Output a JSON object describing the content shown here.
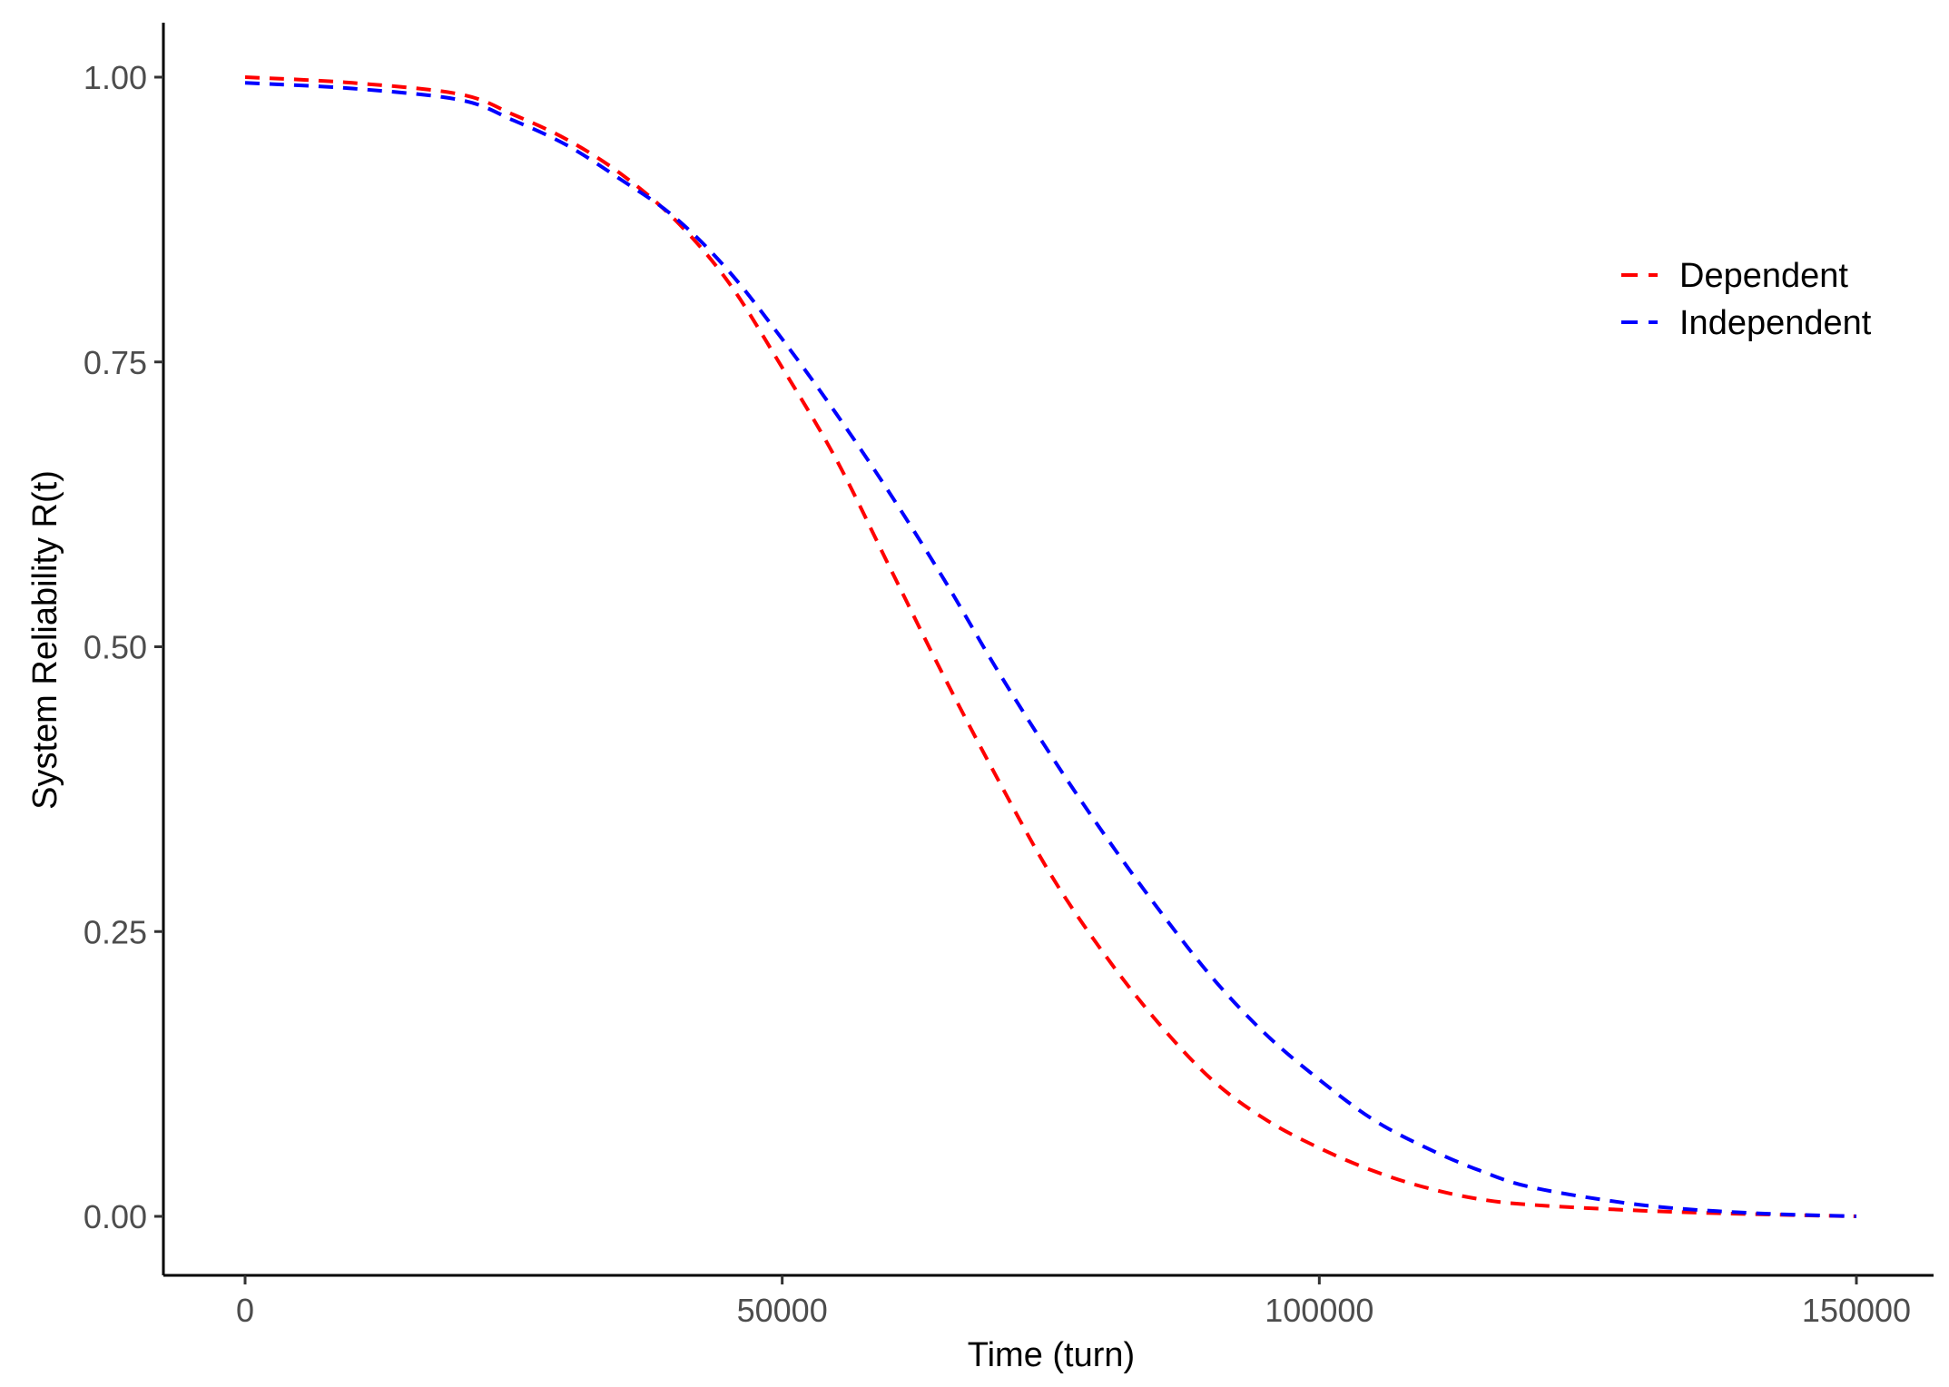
{
  "chart_data": {
    "type": "line",
    "title": "",
    "xlabel": "Time (turn)",
    "ylabel": "System Reliability R(t)",
    "xlim": [
      -7500,
      157500
    ],
    "ylim": [
      -0.05,
      1.05
    ],
    "x_ticks": [
      0,
      50000,
      100000,
      150000
    ],
    "x_tick_labels": [
      "0",
      "50000",
      "100000",
      "150000"
    ],
    "y_ticks": [
      0,
      0.25,
      0.5,
      0.75,
      1.0
    ],
    "y_tick_labels": [
      "0.00",
      "0.25",
      "0.50",
      "0.75",
      "1.00"
    ],
    "grid": false,
    "legend_position": "right-top",
    "x": [
      0,
      10000,
      20000,
      25000,
      30000,
      35000,
      40000,
      45000,
      50000,
      55000,
      60000,
      65000,
      70000,
      75000,
      80000,
      85000,
      90000,
      95000,
      100000,
      105000,
      110000,
      115000,
      120000,
      130000,
      140000,
      150000
    ],
    "series": [
      {
        "name": "Dependent",
        "color": "#ff0000",
        "linestyle": "dashed",
        "values": [
          1.0,
          0.995,
          0.985,
          0.967,
          0.945,
          0.915,
          0.875,
          0.82,
          0.745,
          0.665,
          0.57,
          0.475,
          0.385,
          0.3,
          0.23,
          0.17,
          0.12,
          0.085,
          0.06,
          0.04,
          0.025,
          0.015,
          0.01,
          0.005,
          0.002,
          0.0
        ]
      },
      {
        "name": "Independent",
        "color": "#0000ff",
        "linestyle": "dashed",
        "values": [
          0.995,
          0.99,
          0.98,
          0.962,
          0.94,
          0.91,
          0.877,
          0.83,
          0.77,
          0.705,
          0.635,
          0.56,
          0.48,
          0.405,
          0.335,
          0.27,
          0.21,
          0.16,
          0.12,
          0.085,
          0.06,
          0.04,
          0.025,
          0.01,
          0.003,
          0.0
        ]
      }
    ]
  },
  "legend": {
    "items": [
      {
        "label": "Dependent",
        "color": "#ff0000"
      },
      {
        "label": "Independent",
        "color": "#0000ff"
      }
    ]
  }
}
